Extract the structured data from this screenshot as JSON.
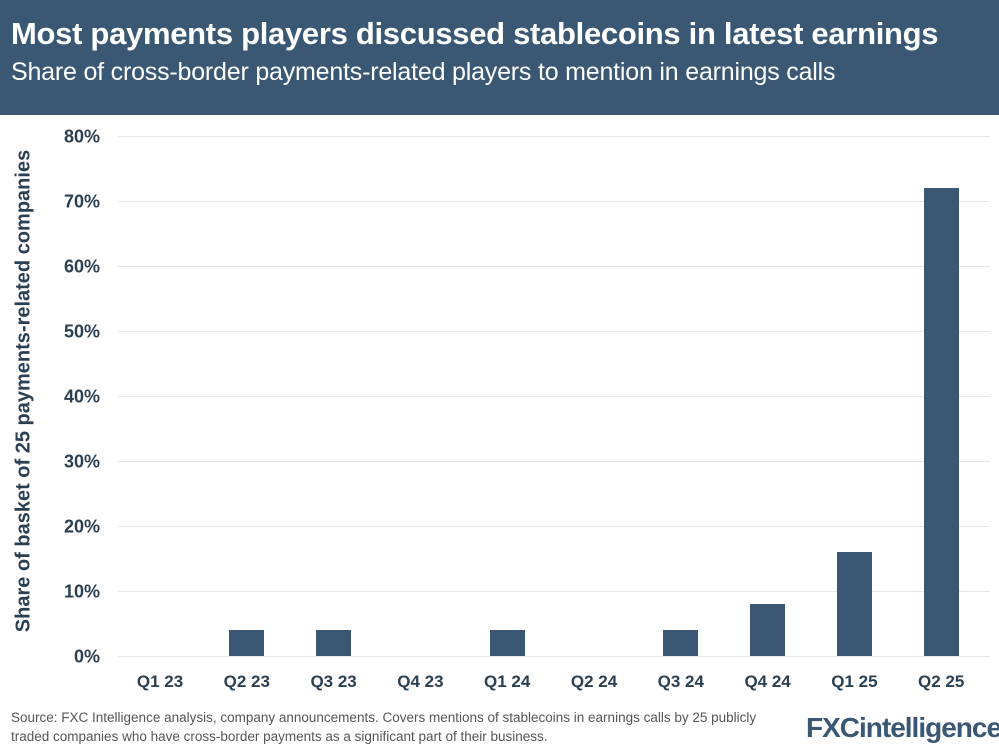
{
  "header": {
    "title": "Most payments players discussed stablecoins in latest earnings",
    "subtitle": "Share of cross-border payments-related players to mention in earnings calls"
  },
  "footer": {
    "source": "Source: FXC Intelligence analysis, company announcements. Covers mentions of stablecoins in earnings calls by 25 publicly traded companies who have cross-border payments as a significant part of their business.",
    "logo": "FXCintelligence",
    "logo_tm": "™"
  },
  "colors": {
    "header_bg": "#3a5874",
    "bar": "#3a5874",
    "grid": "#e6e6e6",
    "text": "#2b3f52"
  },
  "chart_data": {
    "type": "bar",
    "title": "Most payments players discussed stablecoins in latest earnings",
    "subtitle": "Share of cross-border payments-related players to mention in earnings calls",
    "xlabel": "",
    "ylabel": "Share of basket of 25 payments-related companies",
    "categories": [
      "Q1 23",
      "Q2 23",
      "Q3 23",
      "Q4 23",
      "Q1 24",
      "Q2 24",
      "Q3 24",
      "Q4 24",
      "Q1 25",
      "Q2 25"
    ],
    "values": [
      0,
      4,
      4,
      0,
      4,
      0,
      4,
      8,
      16,
      72
    ],
    "unit": "%",
    "ylim": [
      0,
      80
    ],
    "yticks": [
      "0%",
      "10%",
      "20%",
      "30%",
      "40%",
      "50%",
      "60%",
      "70%",
      "80%"
    ],
    "grid": true,
    "legend": null
  }
}
